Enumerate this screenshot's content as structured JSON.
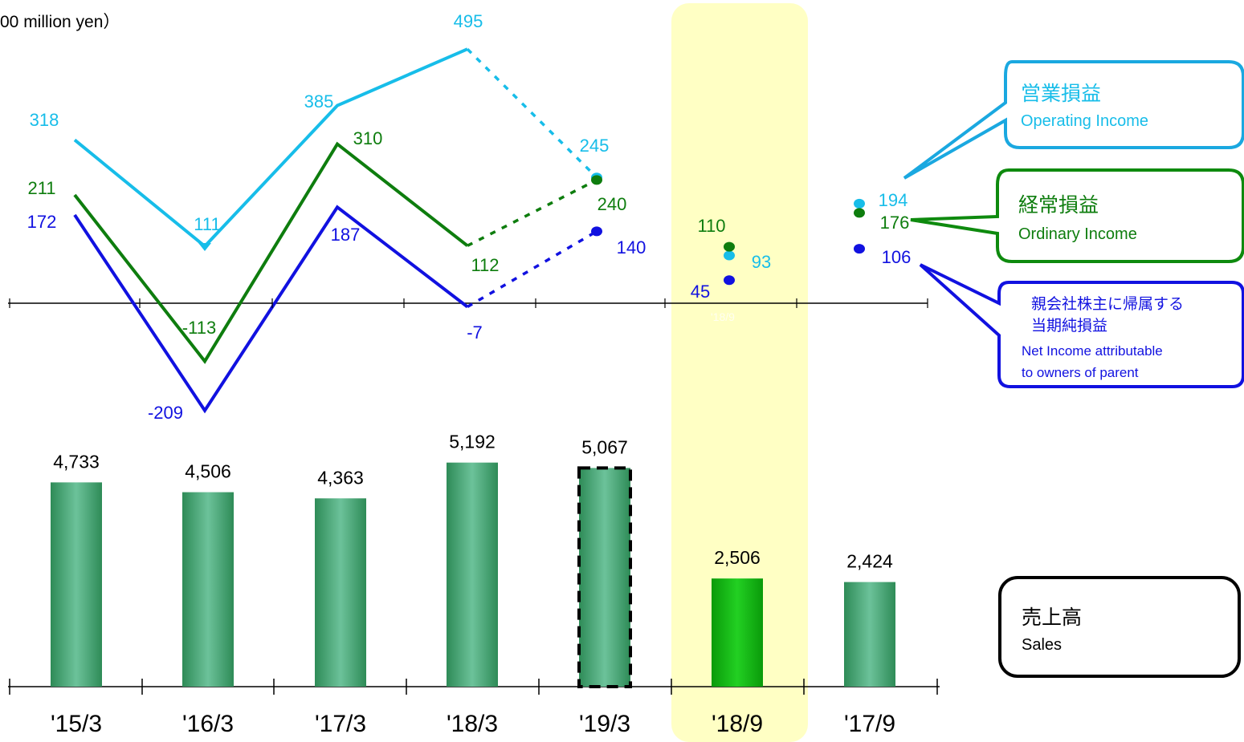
{
  "chart_data": {
    "type": "bar+line",
    "unit_label": "00 million yen）",
    "categories": [
      "'15/3",
      "'16/3",
      "'17/3",
      "'18/3",
      "'19/3",
      "'18/9",
      "'17/9"
    ],
    "highlight_category": "'18/9",
    "faint_axis_label": "'18/9",
    "sales": {
      "legend_title": "売上高",
      "legend_sub": "Sales",
      "values": [
        4733,
        4506,
        4363,
        5192,
        5067,
        2506,
        2424
      ],
      "labels": [
        "4,733",
        "4,506",
        "4,363",
        "5,192",
        "5,067",
        "2,506",
        "2,424"
      ],
      "forecast_index": 4,
      "highlight_index": 5
    },
    "series": [
      {
        "key": "operating",
        "name": "Operating Income",
        "name_ja": "営業損益",
        "color": "#17bde9",
        "values": [
          318,
          111,
          385,
          495,
          245,
          93,
          194
        ],
        "labels": [
          "318",
          "111",
          "385",
          "495",
          "245",
          "93",
          "194"
        ]
      },
      {
        "key": "ordinary",
        "name": "Ordinary Income",
        "name_ja": "経常損益",
        "color": "#0e7d0e",
        "values": [
          211,
          -113,
          310,
          112,
          240,
          110,
          176
        ],
        "labels": [
          "211",
          "-113",
          "310",
          "112",
          "240",
          "110",
          "176"
        ]
      },
      {
        "key": "net",
        "name_ja": "親会社株主に帰属する当期純損益",
        "name_ja_line1": "親会社株主に帰属する",
        "name_ja_line2": "当期純損益",
        "name_line1": "Net Income attributable",
        "name_line2": "to owners of parent",
        "color": "#1111e0",
        "values": [
          172,
          -209,
          187,
          -7,
          140,
          45,
          106
        ],
        "labels": [
          "172",
          "-209",
          "187",
          "-7",
          "140",
          "45",
          "106"
        ]
      }
    ],
    "colors": {
      "bar": "#3aa06b",
      "bar_highlight": "#10b010",
      "highlight_band": "#ffffc4",
      "axis": "#000000"
    }
  }
}
